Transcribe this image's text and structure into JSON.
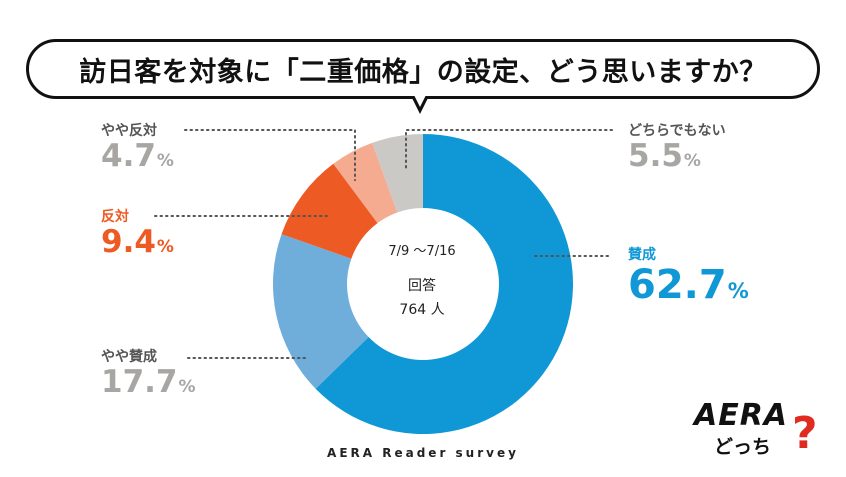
{
  "question": "訪日客を対象に「二重価格」の設定、どう思いますか？",
  "center": {
    "date_range": "7/9 ～7/16",
    "respondents_label": "回答",
    "respondents_count": "764 人"
  },
  "source": "AERA Reader survey",
  "logo": {
    "brand": "AERA",
    "sub": "どっち",
    "mark": "?"
  },
  "chart_data": {
    "type": "pie",
    "unit": "%",
    "slices": [
      {
        "label": "賛成",
        "value": 62.7,
        "color": "#0f97d6"
      },
      {
        "label": "やや賛成",
        "value": 17.7,
        "color": "#6faedb"
      },
      {
        "label": "反対",
        "value": 9.4,
        "color": "#ee5a23"
      },
      {
        "label": "やや反対",
        "value": 4.7,
        "color": "#f4ab8f"
      },
      {
        "label": "どちらでもない",
        "value": 5.5,
        "color": "#cbc9c6"
      }
    ],
    "label_colors": {
      "賛成": "#0f97d6",
      "やや賛成": "#a8a6a3",
      "反対": "#ee5a23",
      "やや反対": "#a8a6a3",
      "どちらでもない": "#a8a6a3"
    }
  }
}
